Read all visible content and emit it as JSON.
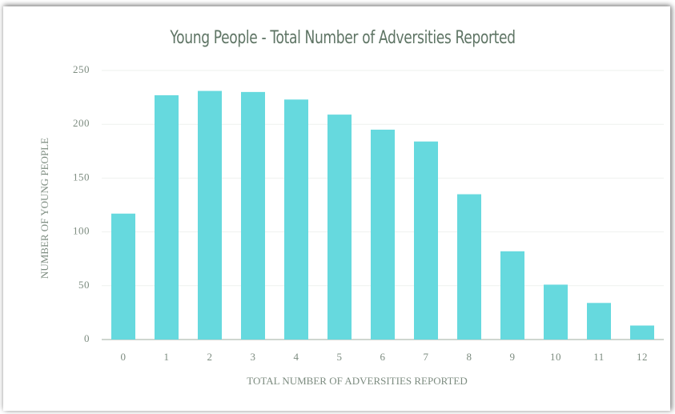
{
  "chart_data": {
    "type": "bar",
    "title": "Young People - Total Number of Adversities Reported",
    "x_label": "TOTAL NUMBER OF ADVERSITIES REPORTED",
    "y_label": "NUMBER OF YOUNG PEOPLE",
    "categories": [
      "0",
      "1",
      "2",
      "3",
      "4",
      "5",
      "6",
      "7",
      "8",
      "9",
      "10",
      "11",
      "12"
    ],
    "values": [
      117,
      227,
      231,
      230,
      223,
      209,
      195,
      184,
      135,
      82,
      51,
      34,
      13
    ],
    "color": "#66d9de",
    "ylim": [
      0,
      250
    ],
    "yticks": [
      0,
      50,
      100,
      150,
      200,
      250
    ],
    "grid": true
  }
}
